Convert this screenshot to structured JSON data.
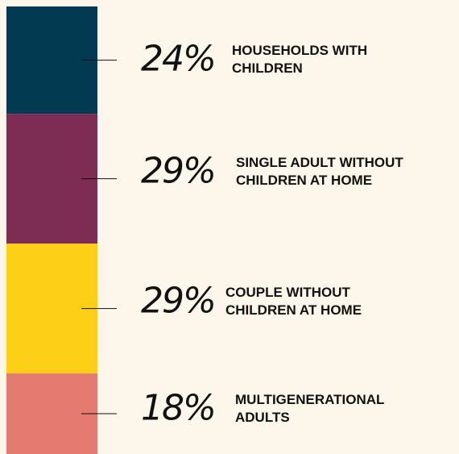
{
  "chart_data": {
    "type": "stacked-bar",
    "ylim": [
      0,
      100
    ],
    "series": [
      {
        "name": "HOUSEHOLDS WITH CHILDREN",
        "color": "#023a52",
        "values": [
          24
        ],
        "value_labels": [
          "24%"
        ]
      },
      {
        "name": "SINGLE ADULT WITHOUT CHILDREN AT HOME",
        "color": "#7d2c53",
        "values": [
          29
        ],
        "value_labels": [
          "29%"
        ]
      },
      {
        "name": "COUPLE WITHOUT CHILDREN AT HOME",
        "color": "#fdcf17",
        "values": [
          29
        ],
        "value_labels": [
          "29%"
        ]
      },
      {
        "name": "MULTIGENERATIONAL ADULTS",
        "color": "#e57a70",
        "values": [
          18
        ],
        "value_labels": [
          "18%"
        ]
      }
    ]
  }
}
